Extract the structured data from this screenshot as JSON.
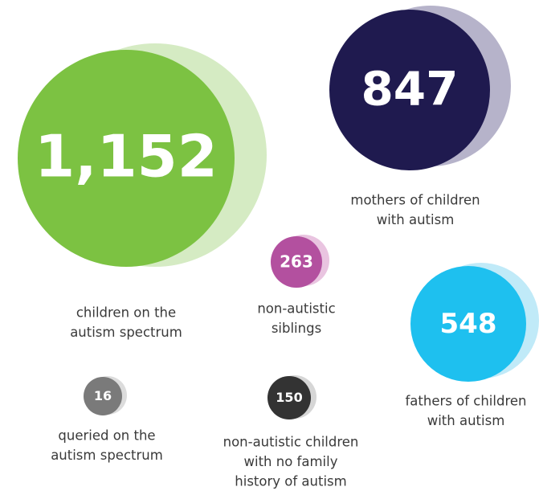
{
  "chart_data": {
    "type": "bubble",
    "labels": [
      [
        "children on the",
        "autism spectrum"
      ],
      [
        "mothers of children",
        "with autism"
      ],
      [
        "non-autistic",
        "siblings"
      ],
      [
        "fathers of children",
        "with autism"
      ],
      [
        "queried on the",
        "autism spectrum"
      ],
      [
        "non-autistic children",
        "with no family",
        "history of autism"
      ]
    ],
    "values": [
      1152,
      847,
      263,
      548,
      16,
      150
    ],
    "value_labels": [
      "1,152",
      "847",
      "263",
      "548",
      "16",
      "150"
    ],
    "colors": [
      "#7cc242",
      "#1f1a4f",
      "#b3509f",
      "#1ec0ef",
      "#7a7a7a",
      "#333333"
    ],
    "shadow_colors": [
      "#d5ebc3",
      "#b6b3ca",
      "#e9c4e0",
      "#c0eaf8",
      "#dcdcdc",
      "#d6d6d6"
    ]
  }
}
